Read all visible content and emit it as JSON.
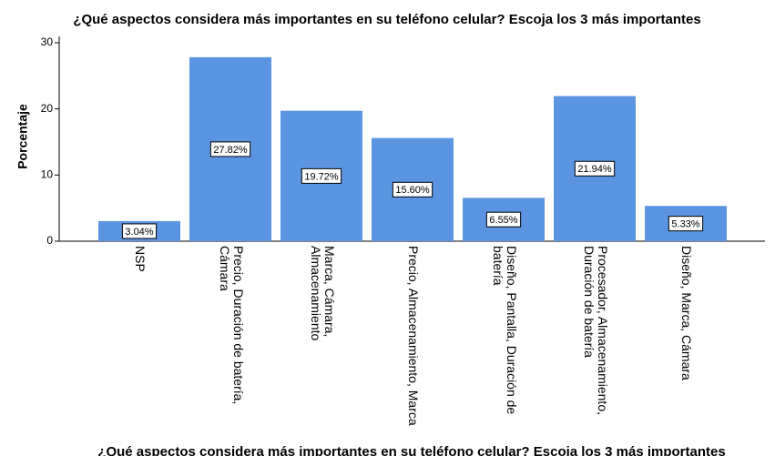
{
  "chart_data": {
    "type": "bar",
    "title": "¿Qué aspectos considera más importantes en su teléfono celular? Escoja los 3 más importantes",
    "x_label": "¿Qué aspectos considera más importantes en su teléfono celular? Escoja los 3 más importantes",
    "y_label": "Porcentaje",
    "categories": [
      "NSP",
      "Precio, Duración de batería, Cámara",
      "Marca, Cámara, Almacenamiento",
      "Precio, Almacenamiento, Marca",
      "Diseño, Pantalla, Duración de batería",
      "Procesador, Almacenamiento, Duración de batería",
      "Diseño, Marca, Cámara"
    ],
    "values": [
      3.04,
      27.82,
      19.72,
      15.6,
      6.55,
      21.94,
      5.33
    ],
    "value_labels": [
      "3.04%",
      "27.82%",
      "19.72%",
      "15.60%",
      "6.55%",
      "21.94%",
      "5.33%"
    ],
    "color": "#5b94e1",
    "ylim": [
      0,
      30
    ],
    "yticks": [
      0,
      10,
      20,
      30
    ],
    "grid": false
  }
}
